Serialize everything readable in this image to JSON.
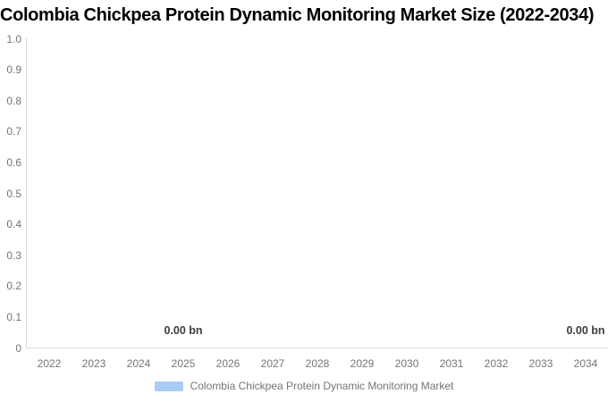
{
  "title": "Colombia Chickpea Protein Dynamic Monitoring Market Size (2022-2034)",
  "chart_data": {
    "type": "bar",
    "title": "Colombia Chickpea Protein Dynamic Monitoring Market Size (2022-2034)",
    "categories": [
      "2022",
      "2023",
      "2024",
      "2025",
      "2026",
      "2027",
      "2028",
      "2029",
      "2030",
      "2031",
      "2032",
      "2033",
      "2034"
    ],
    "series": [
      {
        "name": "Colombia Chickpea Protein Dynamic Monitoring Market",
        "values": [
          0,
          0,
          0,
          0,
          0,
          0,
          0,
          0,
          0,
          0,
          0,
          0,
          0
        ]
      }
    ],
    "xlabel": "",
    "ylabel": "",
    "ylim": [
      0,
      1.0
    ],
    "y_ticks": [
      "1.0",
      "0.9",
      "0.8",
      "0.7",
      "0.6",
      "0.5",
      "0.4",
      "0.3",
      "0.2",
      "0.1",
      "0"
    ],
    "grid": false,
    "legend_position": "bottom",
    "data_labels": [
      {
        "text": "0.00 bn",
        "year": "2025"
      },
      {
        "text": "0.00 bn",
        "year": "2034"
      }
    ],
    "legend": {
      "label": "Colombia Chickpea Protein Dynamic Monitoring Market",
      "swatch_color": "#a8ccf5"
    }
  },
  "colors": {
    "title": "#000000",
    "tick_text": "#757575",
    "axis_line": "#d9d9d9",
    "data_label": "#3d3d3d",
    "series": "#a8ccf5",
    "background": "#ffffff"
  }
}
